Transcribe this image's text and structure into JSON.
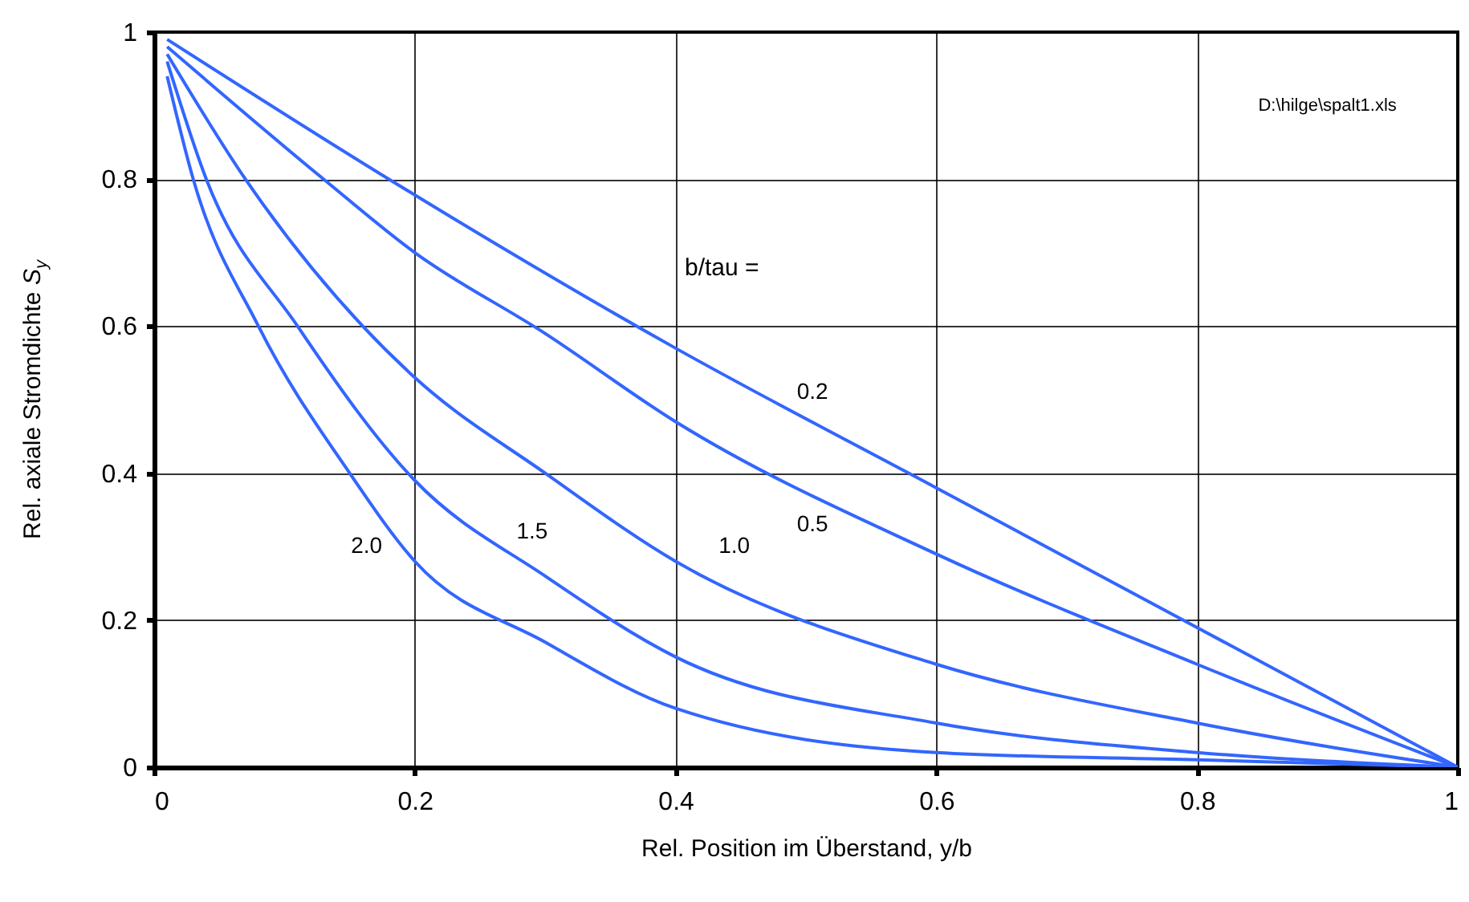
{
  "chart_data": {
    "type": "line",
    "xlabel": "Rel. Position im Überstand, y/b",
    "ylabel": "Rel. axiale Stromdichte S$_{y}$",
    "series": [
      {
        "name": "0.2",
        "color": "#3366ff",
        "x": [
          0.01,
          0.18,
          0.4,
          0.6,
          0.8,
          1
        ],
        "values": [
          0.99,
          0.8,
          0.57,
          0.38,
          0.19,
          0
        ]
      },
      {
        "name": "0.5",
        "color": "#3366ff",
        "x": [
          0.01,
          0.13,
          0.2,
          0.3,
          0.4,
          0.6,
          0.8,
          1
        ],
        "values": [
          0.98,
          0.8,
          0.7,
          0.59,
          0.47,
          0.29,
          0.14,
          0
        ]
      },
      {
        "name": "1.0",
        "color": "#3366ff",
        "x": [
          0.01,
          0.07,
          0.16,
          0.2,
          0.3,
          0.4,
          0.6,
          0.8,
          1
        ],
        "values": [
          0.97,
          0.8,
          0.6,
          0.53,
          0.4,
          0.28,
          0.14,
          0.06,
          0
        ]
      },
      {
        "name": "1.5",
        "color": "#3366ff",
        "x": [
          0.01,
          0.04,
          0.11,
          0.2,
          0.3,
          0.4,
          0.6,
          0.8,
          1
        ],
        "values": [
          0.96,
          0.8,
          0.6,
          0.39,
          0.26,
          0.15,
          0.06,
          0.02,
          0
        ]
      },
      {
        "name": "2.0",
        "color": "#3366ff",
        "x": [
          0.01,
          0.03,
          0.08,
          0.15,
          0.2,
          0.3,
          0.4,
          0.6,
          0.8,
          1
        ],
        "values": [
          0.94,
          0.8,
          0.6,
          0.4,
          0.28,
          0.17,
          0.08,
          0.02,
          0.01,
          0
        ]
      }
    ],
    "annotations": [
      "b/tau =",
      "D:\\hilge\\spalt1.xls"
    ],
    "xlim": [
      0,
      1
    ],
    "ylim": [
      0,
      1
    ],
    "xticks": [
      0,
      0.2,
      0.4,
      0.6,
      0.8,
      1
    ],
    "yticks": [
      0,
      0.2,
      0.4,
      0.6,
      0.8,
      1
    ],
    "grid": true,
    "line_style": "solid"
  }
}
